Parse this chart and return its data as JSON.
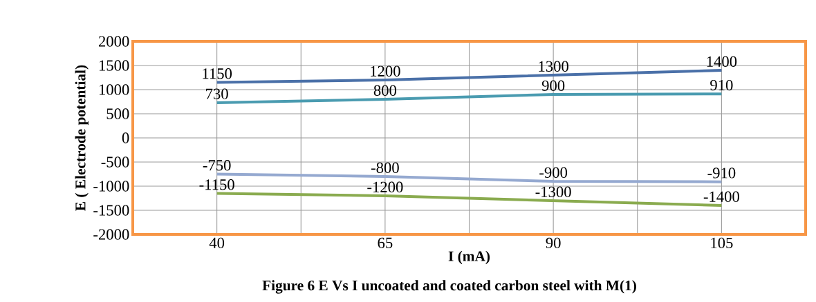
{
  "chart_data": {
    "type": "line",
    "title": "Figure 6 E Vs I uncoated and coated carbon steel with M(1)",
    "xlabel": "I (mA)",
    "ylabel": "E ( Electrode potential)",
    "categories": [
      "40",
      "65",
      "90",
      "105"
    ],
    "series": [
      {
        "color": "#4a70a8",
        "values": [
          1150,
          1200,
          1300,
          1400
        ]
      },
      {
        "color": "#4a9bb0",
        "values": [
          730,
          800,
          900,
          910
        ]
      },
      {
        "color": "#95a9d0",
        "values": [
          -750,
          -800,
          -900,
          -910
        ]
      },
      {
        "color": "#8aab4f",
        "values": [
          -1150,
          -1200,
          -1300,
          -1400
        ]
      }
    ],
    "ylim": [
      -2000,
      2000
    ],
    "yticks": [
      -2000,
      -1500,
      -1000,
      -500,
      0,
      500,
      1000,
      1500,
      2000
    ],
    "grid": true,
    "data_labels": true,
    "marker": "none",
    "line_style": "solid"
  }
}
